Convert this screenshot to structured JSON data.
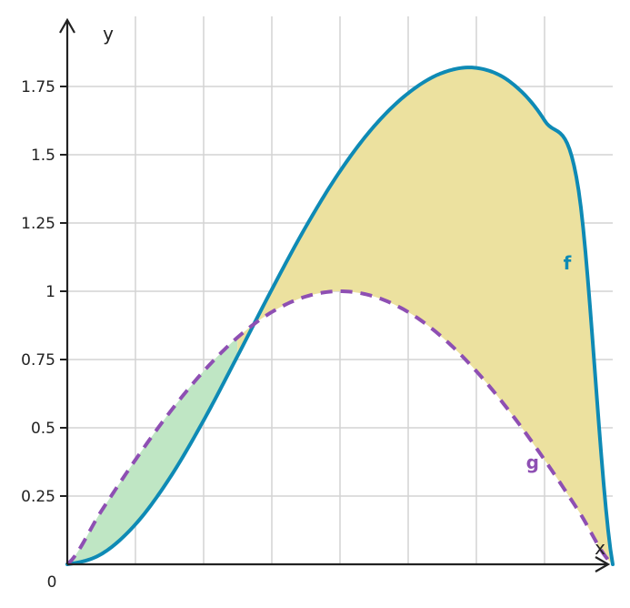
{
  "chart_data": {
    "type": "line",
    "xlabel": "x",
    "ylabel": "y",
    "origin_label": "0",
    "xlim": [
      0,
      3.1416
    ],
    "ylim": [
      0,
      2
    ],
    "x_gridlines": [
      0.3927,
      0.7854,
      1.1781,
      1.5708,
      1.9635,
      2.3562,
      2.7489
    ],
    "y_ticks": [
      {
        "value": 0.25,
        "label": "0.25"
      },
      {
        "value": 0.5,
        "label": "0.5"
      },
      {
        "value": 0.75,
        "label": "0.75"
      },
      {
        "value": 1,
        "label": "1"
      },
      {
        "value": 1.25,
        "label": "1.25"
      },
      {
        "value": 1.5,
        "label": "1.5"
      },
      {
        "value": 1.75,
        "label": "1.75"
      }
    ],
    "grid": true,
    "series": [
      {
        "name": "f",
        "color": "#0e8ab5",
        "dash": "solid",
        "x": [
          0,
          0.1963,
          0.3927,
          0.589,
          0.7854,
          0.9817,
          1.1781,
          1.3744,
          1.5708,
          1.7671,
          1.9635,
          2.1598,
          2.3562,
          2.5525,
          2.7489,
          2.9452,
          3.1416
        ],
        "y": [
          0,
          0.0375,
          0.1464,
          0.3151,
          0.5272,
          0.7641,
          1.0066,
          1.2368,
          1.4396,
          1.6042,
          1.7254,
          1.7997,
          1.8179,
          1.7661,
          1.6256,
          1.3687,
          0
        ]
      },
      {
        "name": "g",
        "color": "#8e4fb3",
        "dash": "dashed",
        "x": [
          0,
          0.1963,
          0.3927,
          0.589,
          0.7854,
          0.9817,
          1.1781,
          1.3744,
          1.5708,
          1.7671,
          1.9635,
          2.1598,
          2.3562,
          2.5525,
          2.7489,
          2.9452,
          3.1416
        ],
        "y": [
          0,
          0.1951,
          0.3827,
          0.5556,
          0.7071,
          0.8315,
          0.9239,
          0.9808,
          1,
          0.9808,
          0.9239,
          0.8315,
          0.7071,
          0.5556,
          0.3827,
          0.1951,
          0
        ]
      }
    ],
    "fills": [
      {
        "between": [
          "g",
          "f"
        ],
        "x_range": [
          0,
          0.98
        ],
        "color": "#bfe6c4",
        "region": "g above f"
      },
      {
        "between": [
          "f",
          "g"
        ],
        "x_range": [
          0.98,
          3.1416
        ],
        "color": "#ece19f",
        "region": "f above g"
      }
    ],
    "series_labels": [
      {
        "series": "f",
        "text": "f",
        "x": 2.88,
        "y": 1.08
      },
      {
        "series": "g",
        "text": "g",
        "x": 2.68,
        "y": 0.35
      }
    ]
  }
}
